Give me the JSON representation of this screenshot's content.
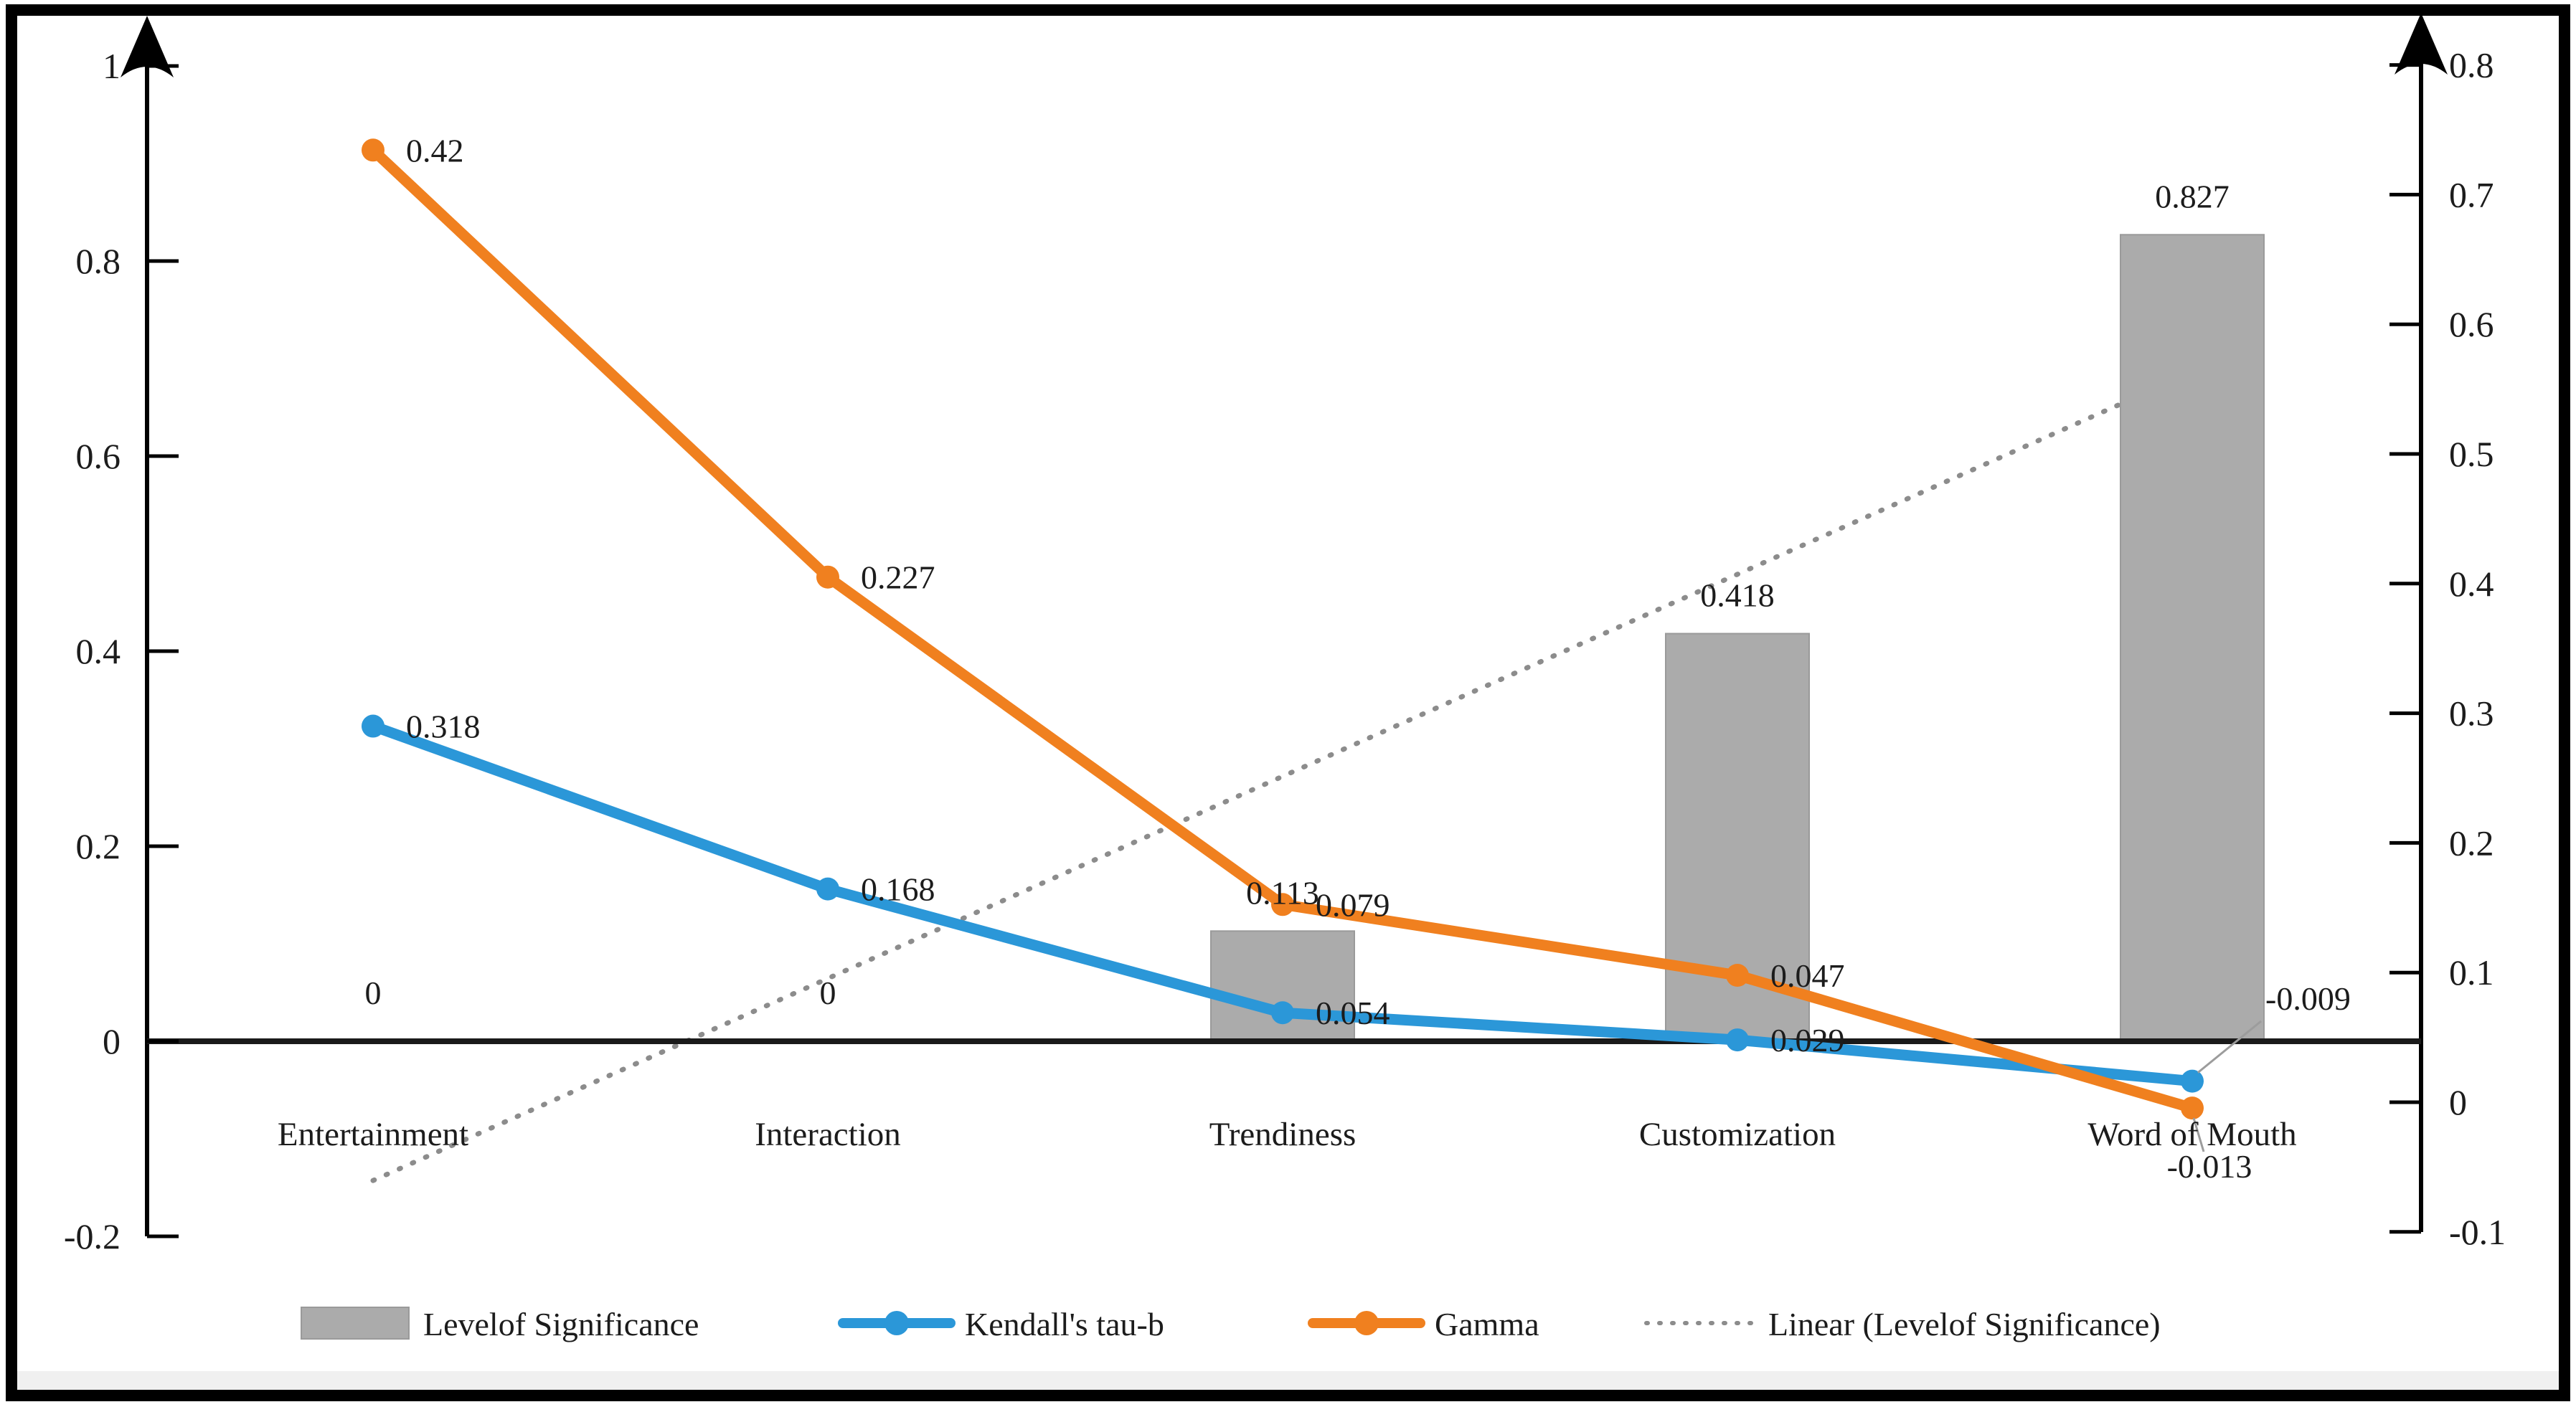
{
  "chart_data": {
    "type": "bar",
    "subtype": "combo-bar-line-dual-axis",
    "title": "",
    "categories": [
      "Entertainment",
      "Interaction",
      "Trendiness",
      "Customization",
      "Word of Mouth"
    ],
    "series": [
      {
        "name": "Levelof Significance",
        "type": "bar",
        "color": "#ABABAB",
        "values": [
          0,
          0,
          0.113,
          0.418,
          0.827
        ],
        "value_labels": [
          "0",
          "0",
          "0.113",
          "0.418",
          "0.827"
        ]
      },
      {
        "name": "Kendall's tau-b",
        "type": "line",
        "color": "#2B97D8",
        "values": [
          0.318,
          0.168,
          0.054,
          0.029,
          -0.009
        ],
        "value_labels": [
          "0.318",
          "0.168",
          "0.054",
          "0.029",
          "-0.009"
        ]
      },
      {
        "name": "Gamma",
        "type": "line",
        "color": "#F0801F",
        "values": [
          0.42,
          0.227,
          0.079,
          0.047,
          -0.013
        ],
        "value_labels": [
          "0.42",
          "0.227",
          "0.079",
          "0.047",
          "-0.013"
        ]
      },
      {
        "name": "Linear (Levelof Significance)",
        "type": "linear-trendline",
        "source": "Levelof Significance",
        "color": "#8C8C8C",
        "style": "dotted"
      }
    ],
    "left_axis": {
      "range": [
        -0.2,
        1
      ],
      "tick_labels": [
        "1",
        "0.8",
        "0.6",
        "0.4",
        "0.2",
        "0",
        "-0.2"
      ]
    },
    "right_axis": {
      "range": [
        -0.1,
        0.8
      ],
      "tick_labels": [
        "0.8",
        "0.7",
        "0.6",
        "0.5",
        "0.4",
        "0.3",
        "0.2",
        "0.1",
        "0",
        "-0.1"
      ]
    },
    "grid": "off",
    "legend_position": "bottom",
    "legend": {
      "items": [
        {
          "label": "Levelof Significance",
          "swatch": "bar"
        },
        {
          "label": "Kendall's tau-b",
          "swatch": "line-marker"
        },
        {
          "label": "Gamma",
          "swatch": "line-marker"
        },
        {
          "label": "Linear (Levelof Significance)",
          "swatch": "dotted-line"
        }
      ]
    }
  }
}
